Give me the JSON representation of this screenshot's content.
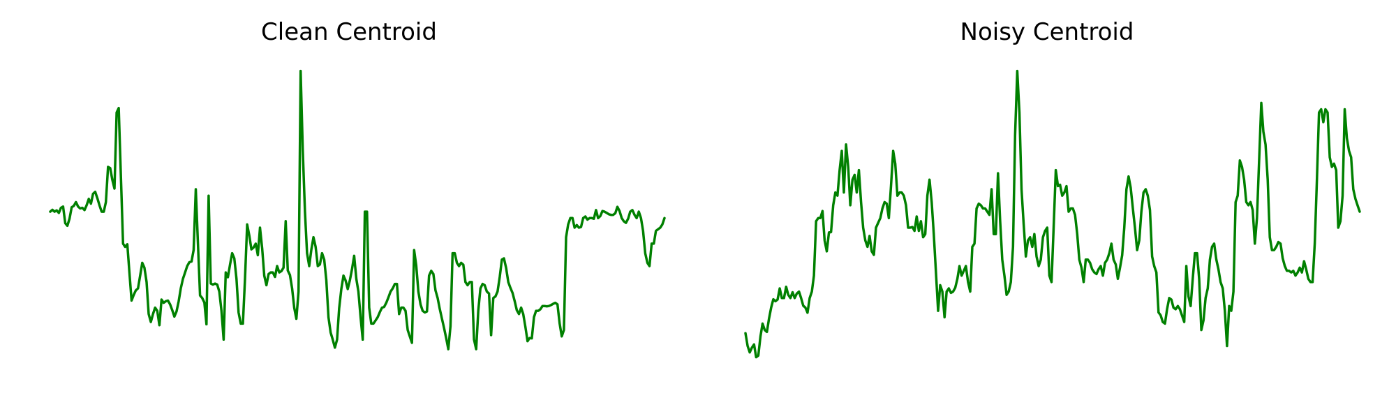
{
  "line_color": "#008000",
  "chart_data": [
    {
      "type": "line",
      "title": "Clean Centroid",
      "xlabel": "",
      "ylabel": "",
      "axes": "off",
      "grid": false,
      "ylim": [
        0.0,
        1.0
      ],
      "series": [
        {
          "values": [
            0.55,
            0.556,
            0.55,
            0.554,
            0.546,
            0.562,
            0.566,
            0.514,
            0.506,
            0.528,
            0.564,
            0.568,
            0.58,
            0.566,
            0.56,
            0.562,
            0.555,
            0.57,
            0.59,
            0.575,
            0.606,
            0.612,
            0.592,
            0.57,
            0.55,
            0.55,
            0.58,
            0.69,
            0.686,
            0.65,
            0.622,
            0.86,
            0.874,
            0.66,
            0.45,
            0.44,
            0.448,
            0.36,
            0.272,
            0.29,
            0.304,
            0.31,
            0.35,
            0.39,
            0.375,
            0.33,
            0.23,
            0.205,
            0.23,
            0.25,
            0.24,
            0.195,
            0.275,
            0.265,
            0.27,
            0.272,
            0.26,
            0.242,
            0.222,
            0.238,
            0.27,
            0.31,
            0.34,
            0.36,
            0.38,
            0.392,
            0.394,
            0.43,
            0.62,
            0.45,
            0.288,
            0.28,
            0.266,
            0.198,
            0.6,
            0.325,
            0.322,
            0.325,
            0.322,
            0.3,
            0.24,
            0.15,
            0.36,
            0.345,
            0.385,
            0.42,
            0.404,
            0.34,
            0.235,
            0.2,
            0.2,
            0.34,
            0.51,
            0.475,
            0.432,
            0.438,
            0.45,
            0.414,
            0.5,
            0.435,
            0.35,
            0.32,
            0.355,
            0.36,
            0.36,
            0.346,
            0.38,
            0.36,
            0.364,
            0.375,
            0.52,
            0.366,
            0.352,
            0.31,
            0.25,
            0.215,
            0.3,
            0.99,
            0.74,
            0.55,
            0.42,
            0.38,
            0.432,
            0.47,
            0.44,
            0.38,
            0.385,
            0.42,
            0.4,
            0.336,
            0.22,
            0.172,
            0.15,
            0.125,
            0.15,
            0.248,
            0.308,
            0.35,
            0.335,
            0.308,
            0.336,
            0.37,
            0.412,
            0.34,
            0.3,
            0.22,
            0.15,
            0.55,
            0.55,
            0.25,
            0.2,
            0.2,
            0.21,
            0.22,
            0.236,
            0.25,
            0.252,
            0.265,
            0.282,
            0.3,
            0.31,
            0.324,
            0.324,
            0.23,
            0.25,
            0.25,
            0.24,
            0.18,
            0.16,
            0.14,
            0.43,
            0.382,
            0.3,
            0.26,
            0.24,
            0.235,
            0.238,
            0.35,
            0.365,
            0.355,
            0.304,
            0.28,
            0.246,
            0.216,
            0.186,
            0.155,
            0.12,
            0.192,
            0.42,
            0.42,
            0.39,
            0.38,
            0.39,
            0.384,
            0.33,
            0.32,
            0.33,
            0.33,
            0.15,
            0.12,
            0.24,
            0.31,
            0.324,
            0.32,
            0.3,
            0.294,
            0.164,
            0.28,
            0.285,
            0.3,
            0.345,
            0.4,
            0.404,
            0.374,
            0.33,
            0.312,
            0.296,
            0.27,
            0.242,
            0.23,
            0.25,
            0.23,
            0.19,
            0.145,
            0.155,
            0.154,
            0.22,
            0.24,
            0.24,
            0.245,
            0.255,
            0.255,
            0.254,
            0.255,
            0.258,
            0.262,
            0.265,
            0.26,
            0.2,
            0.16,
            0.18,
            0.47,
            0.51,
            0.53,
            0.53,
            0.5,
            0.508,
            0.5,
            0.502,
            0.53,
            0.535,
            0.525,
            0.53,
            0.53,
            0.528,
            0.555,
            0.53,
            0.536,
            0.552,
            0.55,
            0.546,
            0.542,
            0.54,
            0.54,
            0.545,
            0.565,
            0.552,
            0.53,
            0.52,
            0.515,
            0.528,
            0.55,
            0.555,
            0.54,
            0.53,
            0.55,
            0.53,
            0.49,
            0.42,
            0.39,
            0.38,
            0.45,
            0.45,
            0.49,
            0.495,
            0.5,
            0.51,
            0.53
          ]
        }
      ]
    },
    {
      "type": "line",
      "title": "Noisy Centroid",
      "xlabel": "",
      "ylabel": "",
      "axes": "off",
      "grid": false,
      "ylim": [
        0.0,
        1.0
      ],
      "series": [
        {
          "values": [
            0.17,
            0.13,
            0.11,
            0.125,
            0.135,
            0.095,
            0.1,
            0.16,
            0.2,
            0.18,
            0.174,
            0.215,
            0.25,
            0.276,
            0.27,
            0.275,
            0.31,
            0.28,
            0.28,
            0.315,
            0.29,
            0.28,
            0.298,
            0.28,
            0.294,
            0.3,
            0.28,
            0.256,
            0.25,
            0.234,
            0.28,
            0.3,
            0.35,
            0.52,
            0.53,
            0.53,
            0.552,
            0.46,
            0.426,
            0.485,
            0.486,
            0.57,
            0.61,
            0.6,
            0.68,
            0.74,
            0.61,
            0.76,
            0.69,
            0.57,
            0.65,
            0.665,
            0.61,
            0.68,
            0.58,
            0.5,
            0.46,
            0.44,
            0.474,
            0.426,
            0.415,
            0.5,
            0.515,
            0.53,
            0.56,
            0.58,
            0.575,
            0.53,
            0.63,
            0.74,
            0.7,
            0.6,
            0.61,
            0.61,
            0.6,
            0.57,
            0.5,
            0.5,
            0.502,
            0.49,
            0.535,
            0.49,
            0.52,
            0.47,
            0.48,
            0.6,
            0.65,
            0.58,
            0.48,
            0.36,
            0.24,
            0.32,
            0.3,
            0.22,
            0.3,
            0.31,
            0.296,
            0.3,
            0.312,
            0.34,
            0.38,
            0.35,
            0.365,
            0.38,
            0.33,
            0.3,
            0.44,
            0.45,
            0.56,
            0.575,
            0.57,
            0.56,
            0.56,
            0.55,
            0.54,
            0.62,
            0.48,
            0.48,
            0.67,
            0.52,
            0.4,
            0.35,
            0.29,
            0.3,
            0.33,
            0.44,
            0.79,
            0.99,
            0.86,
            0.62,
            0.51,
            0.41,
            0.46,
            0.47,
            0.44,
            0.48,
            0.41,
            0.38,
            0.4,
            0.47,
            0.49,
            0.5,
            0.35,
            0.33,
            0.5,
            0.68,
            0.63,
            0.634,
            0.6,
            0.61,
            0.63,
            0.55,
            0.56,
            0.56,
            0.54,
            0.48,
            0.4,
            0.375,
            0.33,
            0.4,
            0.4,
            0.39,
            0.37,
            0.36,
            0.355,
            0.37,
            0.38,
            0.35,
            0.39,
            0.4,
            0.42,
            0.45,
            0.4,
            0.385,
            0.34,
            0.375,
            0.414,
            0.5,
            0.62,
            0.66,
            0.625,
            0.56,
            0.5,
            0.43,
            0.46,
            0.55,
            0.61,
            0.62,
            0.6,
            0.555,
            0.41,
            0.38,
            0.36,
            0.235,
            0.226,
            0.205,
            0.2,
            0.245,
            0.28,
            0.275,
            0.25,
            0.245,
            0.255,
            0.245,
            0.225,
            0.205,
            0.38,
            0.285,
            0.255,
            0.34,
            0.42,
            0.42,
            0.34,
            0.18,
            0.21,
            0.28,
            0.31,
            0.4,
            0.44,
            0.45,
            0.4,
            0.37,
            0.33,
            0.31,
            0.24,
            0.13,
            0.255,
            0.24,
            0.3,
            0.58,
            0.6,
            0.71,
            0.69,
            0.65,
            0.58,
            0.57,
            0.58,
            0.555,
            0.45,
            0.53,
            0.71,
            0.89,
            0.8,
            0.76,
            0.65,
            0.47,
            0.43,
            0.43,
            0.44,
            0.455,
            0.45,
            0.405,
            0.38,
            0.365,
            0.365,
            0.36,
            0.365,
            0.35,
            0.36,
            0.375,
            0.36,
            0.395,
            0.37,
            0.34,
            0.33,
            0.33,
            0.45,
            0.65,
            0.86,
            0.87,
            0.83,
            0.87,
            0.86,
            0.72,
            0.69,
            0.7,
            0.68,
            0.5,
            0.52,
            0.6,
            0.87,
            0.78,
            0.74,
            0.72,
            0.62,
            0.59,
            0.57,
            0.55
          ]
        }
      ]
    }
  ]
}
